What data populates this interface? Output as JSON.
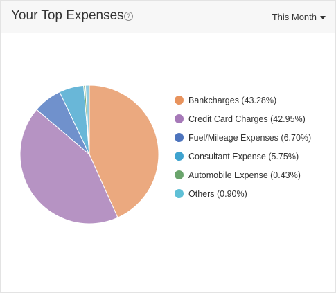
{
  "header": {
    "title": "Your Top Expenses",
    "help_glyph": "?",
    "period_label": "This Month"
  },
  "chart_data": {
    "type": "pie",
    "title": "",
    "categories": [
      "Bankcharges",
      "Credit Card Charges",
      "Fuel/Mileage Expenses",
      "Consultant Expense",
      "Automobile Expense",
      "Others"
    ],
    "values": [
      43.28,
      42.95,
      6.7,
      5.75,
      0.43,
      0.9
    ],
    "legend_labels": [
      "Bankcharges (43.28%)",
      "Credit Card Charges (42.95%)",
      "Fuel/Mileage Expenses (6.70%)",
      "Consultant Expense (5.75%)",
      "Automobile Expense (0.43%)",
      "Others (0.90%)"
    ],
    "slice_colors": [
      "#eba97f",
      "#b693c3",
      "#7091cc",
      "#69b7d8",
      "#7cae7a",
      "#93cde0"
    ],
    "legend_colors": [
      "#e8935d",
      "#a679b8",
      "#4d74bd",
      "#3fa3cf",
      "#6aa46c",
      "#5fc0d6"
    ],
    "legend": "right",
    "start_angle": "12 o'clock",
    "direction": "clockwise"
  }
}
